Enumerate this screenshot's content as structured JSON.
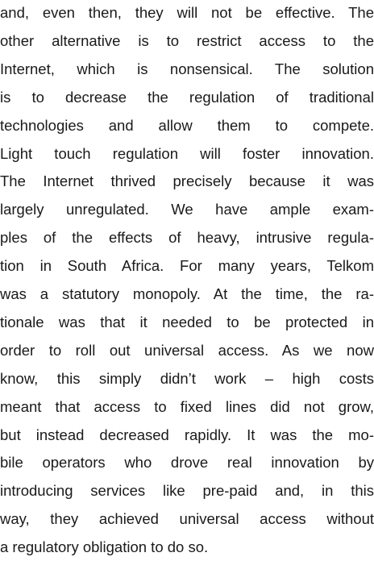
{
  "paragraph": {
    "lines": [
      "and, even then, they will not be effective. The",
      "other alternative is to restrict access to the",
      "Internet, which is nonsensical. The solution",
      "is to decrease the regulation of traditional",
      "technologies and allow them to compete.",
      "Light touch regulation will foster innovation.",
      "The Internet thrived precisely because it was",
      "largely unregulated. We have ample exam-",
      "ples of the effects of heavy, intrusive regula-",
      "tion in South Africa. For many years, Telkom",
      "was a statutory monopoly. At the time, the ra-",
      "tionale was that it needed to be protected in",
      "order to roll out universal access. As we now",
      "know, this simply didn’t work – high costs",
      "meant that access to fixed lines did not grow,",
      "but instead decreased rapidly. It was the mo-",
      "bile operators who drove real innovation by",
      "introducing services like pre-paid and, in this",
      "way, they achieved universal access without",
      "a regulatory obligation to do so."
    ]
  }
}
